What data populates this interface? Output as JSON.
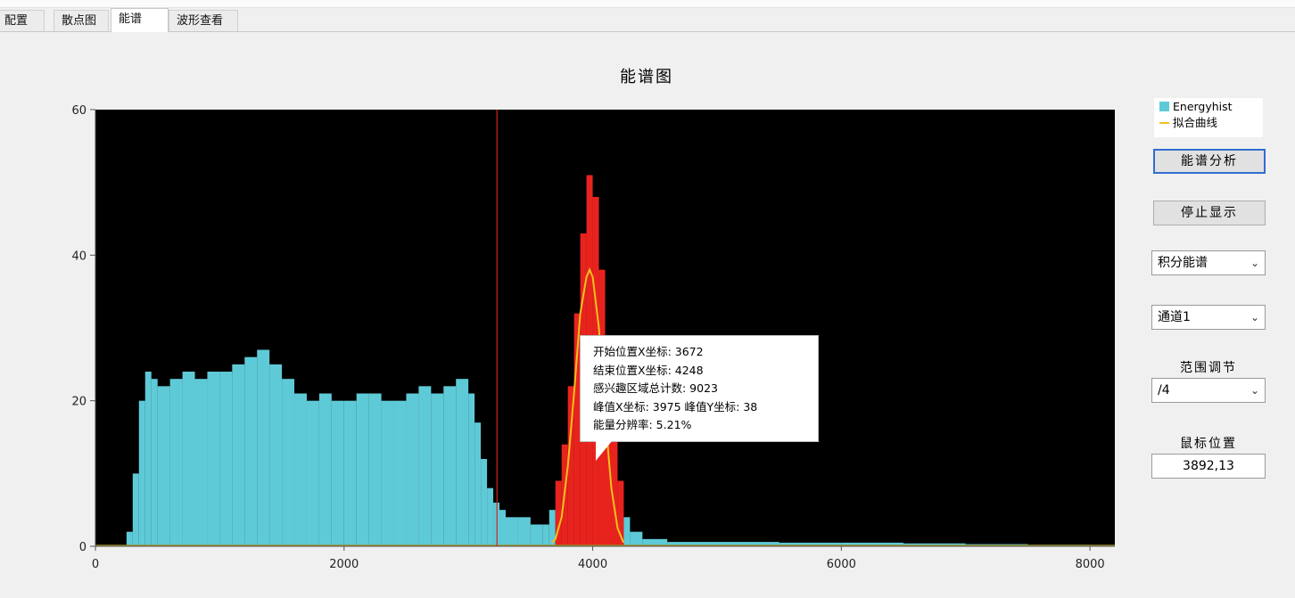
{
  "tabs": [
    {
      "label": "配置"
    },
    {
      "label": "散点图"
    },
    {
      "label": "能谱"
    },
    {
      "label": "波形查看"
    }
  ],
  "active_tab": 2,
  "legend": {
    "hist_label": "Energyhist",
    "fit_label": "拟合曲线"
  },
  "controls": {
    "analyze_button": "能谱分析",
    "stop_button": "停止显示",
    "mode_select": "积分能谱",
    "channel_select": "通道1",
    "range_label": "范围调节",
    "range_select": "/4",
    "mouse_label": "鼠标位置",
    "mouse_value": "3892,13"
  },
  "tooltip": {
    "line1": "开始位置X坐标: 3672",
    "line2": "结束位置X坐标: 4248",
    "line3": "感兴趣区域总计数: 9023",
    "line4": "峰值X坐标: 3975  峰值Y坐标: 38",
    "line5": "能量分辨率: 5.21%"
  },
  "colors": {
    "plot_background": "#000000",
    "histogram": "#5fcad7",
    "roi": "#e8231e",
    "fit_curve": "#f2c21b",
    "cursor_line": "#d0231c"
  },
  "chart_data": {
    "type": "bar",
    "title": "能谱图",
    "xlabel": "",
    "ylabel": "",
    "xlim": [
      0,
      8200
    ],
    "ylim": [
      0,
      60
    ],
    "x_ticks": [
      0,
      2000,
      4000,
      6000,
      8000
    ],
    "y_ticks": [
      0,
      20,
      40,
      60
    ],
    "grid": false,
    "legend_position": "top-right",
    "cursor_x": 3230,
    "roi": {
      "start": 3672,
      "end": 4248
    },
    "series": [
      {
        "name": "Energyhist",
        "x": [
          250,
          300,
          350,
          400,
          450,
          500,
          600,
          700,
          800,
          900,
          1000,
          1100,
          1200,
          1300,
          1400,
          1500,
          1600,
          1700,
          1800,
          1900,
          2000,
          2100,
          2200,
          2300,
          2400,
          2500,
          2600,
          2700,
          2800,
          2900,
          3000,
          3050,
          3100,
          3150,
          3200,
          3250,
          3300,
          3400,
          3500,
          3600,
          3650,
          3700,
          3750,
          3800,
          3850,
          3900,
          3950,
          4000,
          4050,
          4100,
          4150,
          4200,
          4250,
          4300,
          4400,
          4600,
          5000,
          5500,
          6000,
          6500,
          7000,
          7500,
          8000
        ],
        "y": [
          2,
          10,
          20,
          24,
          23,
          22,
          23,
          24,
          23,
          24,
          24,
          25,
          26,
          27,
          25,
          23,
          21,
          20,
          21,
          20,
          20,
          21,
          21,
          20,
          20,
          21,
          22,
          21,
          22,
          23,
          21,
          17,
          12,
          8,
          6,
          5,
          4,
          4,
          3,
          3,
          5,
          9,
          14,
          22,
          32,
          43,
          51,
          48,
          38,
          27,
          17,
          9,
          4,
          2,
          1,
          0.6,
          0.6,
          0.5,
          0.5,
          0.4,
          0.3,
          0.2,
          0
        ]
      },
      {
        "name": "拟合曲线",
        "x": [
          3672,
          3700,
          3750,
          3800,
          3850,
          3900,
          3950,
          3975,
          4000,
          4050,
          4100,
          4150,
          4200,
          4248
        ],
        "y": [
          0.5,
          1,
          4,
          11,
          21,
          32,
          37,
          38,
          37,
          30,
          18,
          8,
          2.5,
          0.5
        ]
      }
    ]
  }
}
